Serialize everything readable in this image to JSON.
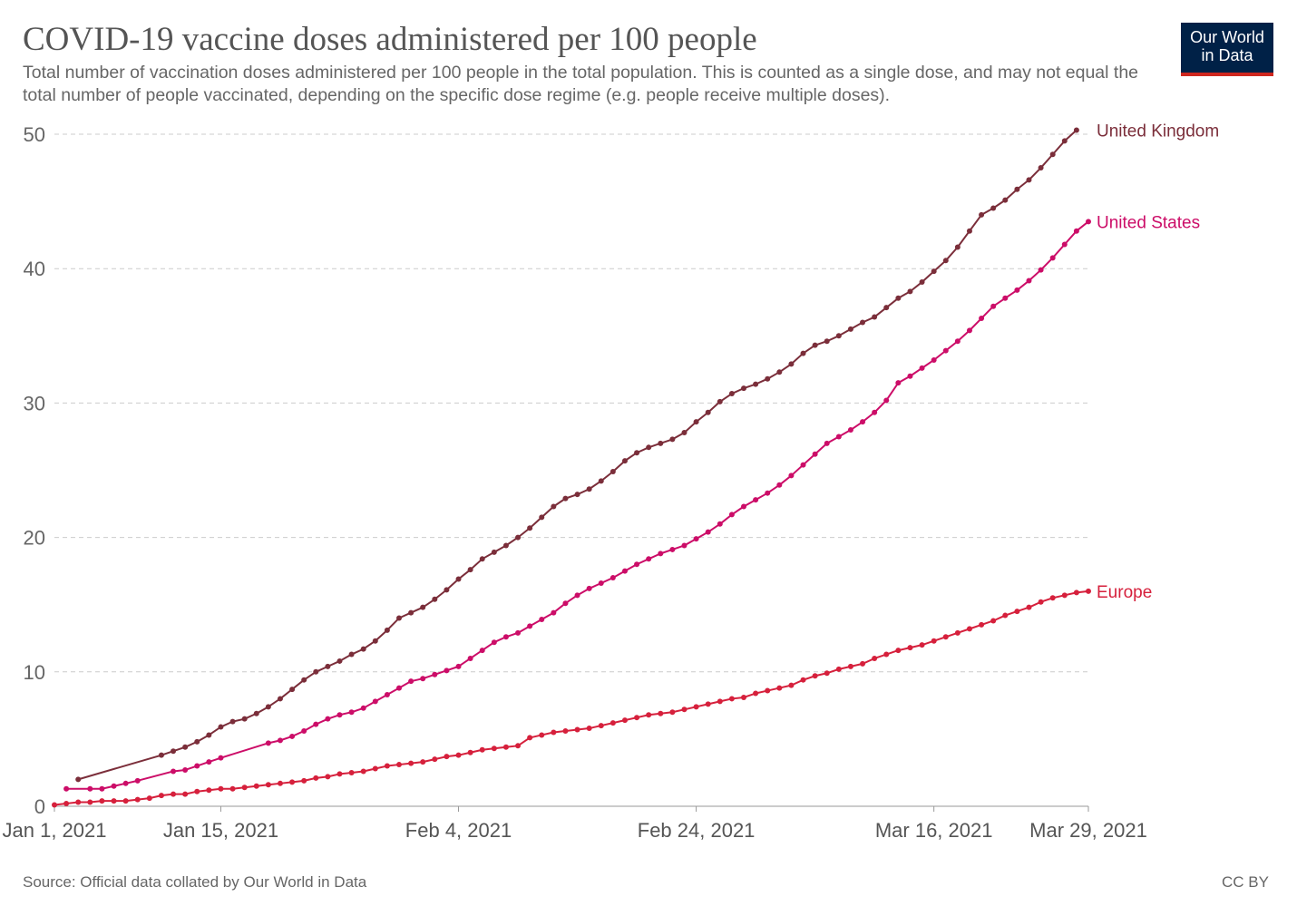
{
  "header": {
    "title": "COVID-19 vaccine doses administered per 100 people",
    "subtitle": "Total number of vaccination doses administered per 100 people in the total population. This is counted as a single dose, and may not equal the total number of people vaccinated, depending on the specific dose regime (e.g. people receive multiple doses).",
    "logo_line1": "Our World",
    "logo_line2": "in Data"
  },
  "footer": {
    "source": "Source: Official data collated by Our World in Data",
    "license": "CC BY"
  },
  "colors": {
    "uk": "#7b2e3a",
    "us": "#cc0d68",
    "europe": "#d6203c",
    "logo_bg": "#002147",
    "logo_accent": "#ce261e",
    "grid": "#cccccc"
  },
  "chart_data": {
    "type": "line",
    "x_axis": {
      "type": "date",
      "start": "2021-01-01",
      "end": "2021-03-29",
      "tick_labels": [
        "Jan 1, 2021",
        "Jan 15, 2021",
        "Feb 4, 2021",
        "Feb 24, 2021",
        "Mar 16, 2021",
        "Mar 29, 2021"
      ],
      "tick_dates": [
        "2021-01-01",
        "2021-01-15",
        "2021-02-04",
        "2021-02-24",
        "2021-03-16",
        "2021-03-29"
      ]
    },
    "y_axis": {
      "ylim": [
        0,
        50
      ],
      "ticks": [
        0,
        10,
        20,
        30,
        40,
        50
      ],
      "grid": true
    },
    "series": [
      {
        "name": "United Kingdom",
        "color": "#7b2e3a",
        "gap_after_date": "2021-01-03",
        "points": [
          [
            "2021-01-03",
            2.0
          ],
          [
            "2021-01-10",
            3.8
          ],
          [
            "2021-01-11",
            4.1
          ],
          [
            "2021-01-12",
            4.4
          ],
          [
            "2021-01-13",
            4.8
          ],
          [
            "2021-01-14",
            5.3
          ],
          [
            "2021-01-15",
            5.9
          ],
          [
            "2021-01-16",
            6.3
          ],
          [
            "2021-01-17",
            6.5
          ],
          [
            "2021-01-18",
            6.9
          ],
          [
            "2021-01-19",
            7.4
          ],
          [
            "2021-01-20",
            8.0
          ],
          [
            "2021-01-21",
            8.7
          ],
          [
            "2021-01-22",
            9.4
          ],
          [
            "2021-01-23",
            10.0
          ],
          [
            "2021-01-24",
            10.4
          ],
          [
            "2021-01-25",
            10.8
          ],
          [
            "2021-01-26",
            11.3
          ],
          [
            "2021-01-27",
            11.7
          ],
          [
            "2021-01-28",
            12.3
          ],
          [
            "2021-01-29",
            13.1
          ],
          [
            "2021-01-30",
            14.0
          ],
          [
            "2021-01-31",
            14.4
          ],
          [
            "2021-02-01",
            14.8
          ],
          [
            "2021-02-02",
            15.4
          ],
          [
            "2021-02-03",
            16.1
          ],
          [
            "2021-02-04",
            16.9
          ],
          [
            "2021-02-05",
            17.6
          ],
          [
            "2021-02-06",
            18.4
          ],
          [
            "2021-02-07",
            18.9
          ],
          [
            "2021-02-08",
            19.4
          ],
          [
            "2021-02-09",
            20.0
          ],
          [
            "2021-02-10",
            20.7
          ],
          [
            "2021-02-11",
            21.5
          ],
          [
            "2021-02-12",
            22.3
          ],
          [
            "2021-02-13",
            22.9
          ],
          [
            "2021-02-14",
            23.2
          ],
          [
            "2021-02-15",
            23.6
          ],
          [
            "2021-02-16",
            24.2
          ],
          [
            "2021-02-17",
            24.9
          ],
          [
            "2021-02-18",
            25.7
          ],
          [
            "2021-02-19",
            26.3
          ],
          [
            "2021-02-20",
            26.7
          ],
          [
            "2021-02-21",
            27.0
          ],
          [
            "2021-02-22",
            27.3
          ],
          [
            "2021-02-23",
            27.8
          ],
          [
            "2021-02-24",
            28.6
          ],
          [
            "2021-02-25",
            29.3
          ],
          [
            "2021-02-26",
            30.1
          ],
          [
            "2021-02-27",
            30.7
          ],
          [
            "2021-02-28",
            31.1
          ],
          [
            "2021-03-01",
            31.4
          ],
          [
            "2021-03-02",
            31.8
          ],
          [
            "2021-03-03",
            32.3
          ],
          [
            "2021-03-04",
            32.9
          ],
          [
            "2021-03-05",
            33.7
          ],
          [
            "2021-03-06",
            34.3
          ],
          [
            "2021-03-07",
            34.6
          ],
          [
            "2021-03-08",
            35.0
          ],
          [
            "2021-03-09",
            35.5
          ],
          [
            "2021-03-10",
            36.0
          ],
          [
            "2021-03-11",
            36.4
          ],
          [
            "2021-03-12",
            37.1
          ],
          [
            "2021-03-13",
            37.8
          ],
          [
            "2021-03-14",
            38.3
          ],
          [
            "2021-03-15",
            39.0
          ],
          [
            "2021-03-16",
            39.8
          ],
          [
            "2021-03-17",
            40.6
          ],
          [
            "2021-03-18",
            41.6
          ],
          [
            "2021-03-19",
            42.8
          ],
          [
            "2021-03-20",
            44.0
          ],
          [
            "2021-03-21",
            44.5
          ],
          [
            "2021-03-22",
            45.1
          ],
          [
            "2021-03-23",
            45.9
          ],
          [
            "2021-03-24",
            46.6
          ],
          [
            "2021-03-25",
            47.5
          ],
          [
            "2021-03-26",
            48.5
          ],
          [
            "2021-03-27",
            49.5
          ],
          [
            "2021-03-28",
            50.3
          ]
        ]
      },
      {
        "name": "United States",
        "color": "#cc0d68",
        "gap_after_date": "2021-01-15",
        "points": [
          [
            "2021-01-02",
            1.3
          ],
          [
            "2021-01-04",
            1.3
          ],
          [
            "2021-01-05",
            1.3
          ],
          [
            "2021-01-06",
            1.5
          ],
          [
            "2021-01-07",
            1.7
          ],
          [
            "2021-01-08",
            1.9
          ],
          [
            "2021-01-11",
            2.6
          ],
          [
            "2021-01-12",
            2.7
          ],
          [
            "2021-01-13",
            3.0
          ],
          [
            "2021-01-14",
            3.3
          ],
          [
            "2021-01-15",
            3.6
          ],
          [
            "2021-01-19",
            4.7
          ],
          [
            "2021-01-20",
            4.9
          ],
          [
            "2021-01-21",
            5.2
          ],
          [
            "2021-01-22",
            5.6
          ],
          [
            "2021-01-23",
            6.1
          ],
          [
            "2021-01-24",
            6.5
          ],
          [
            "2021-01-25",
            6.8
          ],
          [
            "2021-01-26",
            7.0
          ],
          [
            "2021-01-27",
            7.3
          ],
          [
            "2021-01-28",
            7.8
          ],
          [
            "2021-01-29",
            8.3
          ],
          [
            "2021-01-30",
            8.8
          ],
          [
            "2021-01-31",
            9.3
          ],
          [
            "2021-02-01",
            9.5
          ],
          [
            "2021-02-02",
            9.8
          ],
          [
            "2021-02-03",
            10.1
          ],
          [
            "2021-02-04",
            10.4
          ],
          [
            "2021-02-05",
            11.0
          ],
          [
            "2021-02-06",
            11.6
          ],
          [
            "2021-02-07",
            12.2
          ],
          [
            "2021-02-08",
            12.6
          ],
          [
            "2021-02-09",
            12.9
          ],
          [
            "2021-02-10",
            13.4
          ],
          [
            "2021-02-11",
            13.9
          ],
          [
            "2021-02-12",
            14.4
          ],
          [
            "2021-02-13",
            15.1
          ],
          [
            "2021-02-14",
            15.7
          ],
          [
            "2021-02-15",
            16.2
          ],
          [
            "2021-02-16",
            16.6
          ],
          [
            "2021-02-17",
            17.0
          ],
          [
            "2021-02-18",
            17.5
          ],
          [
            "2021-02-19",
            18.0
          ],
          [
            "2021-02-20",
            18.4
          ],
          [
            "2021-02-21",
            18.8
          ],
          [
            "2021-02-22",
            19.1
          ],
          [
            "2021-02-23",
            19.4
          ],
          [
            "2021-02-24",
            19.9
          ],
          [
            "2021-02-25",
            20.4
          ],
          [
            "2021-02-26",
            21.0
          ],
          [
            "2021-02-27",
            21.7
          ],
          [
            "2021-02-28",
            22.3
          ],
          [
            "2021-03-01",
            22.8
          ],
          [
            "2021-03-02",
            23.3
          ],
          [
            "2021-03-03",
            23.9
          ],
          [
            "2021-03-04",
            24.6
          ],
          [
            "2021-03-05",
            25.4
          ],
          [
            "2021-03-06",
            26.2
          ],
          [
            "2021-03-07",
            27.0
          ],
          [
            "2021-03-08",
            27.5
          ],
          [
            "2021-03-09",
            28.0
          ],
          [
            "2021-03-10",
            28.6
          ],
          [
            "2021-03-11",
            29.3
          ],
          [
            "2021-03-12",
            30.2
          ],
          [
            "2021-03-13",
            31.5
          ],
          [
            "2021-03-14",
            32.0
          ],
          [
            "2021-03-15",
            32.6
          ],
          [
            "2021-03-16",
            33.2
          ],
          [
            "2021-03-17",
            33.9
          ],
          [
            "2021-03-18",
            34.6
          ],
          [
            "2021-03-19",
            35.4
          ],
          [
            "2021-03-20",
            36.3
          ],
          [
            "2021-03-21",
            37.2
          ],
          [
            "2021-03-22",
            37.8
          ],
          [
            "2021-03-23",
            38.4
          ],
          [
            "2021-03-24",
            39.1
          ],
          [
            "2021-03-25",
            39.9
          ],
          [
            "2021-03-26",
            40.8
          ],
          [
            "2021-03-27",
            41.8
          ],
          [
            "2021-03-28",
            42.8
          ],
          [
            "2021-03-29",
            43.5
          ]
        ]
      },
      {
        "name": "Europe",
        "color": "#d6203c",
        "points": [
          [
            "2021-01-01",
            0.1
          ],
          [
            "2021-01-02",
            0.2
          ],
          [
            "2021-01-03",
            0.3
          ],
          [
            "2021-01-04",
            0.3
          ],
          [
            "2021-01-05",
            0.4
          ],
          [
            "2021-01-06",
            0.4
          ],
          [
            "2021-01-07",
            0.4
          ],
          [
            "2021-01-08",
            0.5
          ],
          [
            "2021-01-09",
            0.6
          ],
          [
            "2021-01-10",
            0.8
          ],
          [
            "2021-01-11",
            0.9
          ],
          [
            "2021-01-12",
            0.9
          ],
          [
            "2021-01-13",
            1.1
          ],
          [
            "2021-01-14",
            1.2
          ],
          [
            "2021-01-15",
            1.3
          ],
          [
            "2021-01-16",
            1.3
          ],
          [
            "2021-01-17",
            1.4
          ],
          [
            "2021-01-18",
            1.5
          ],
          [
            "2021-01-19",
            1.6
          ],
          [
            "2021-01-20",
            1.7
          ],
          [
            "2021-01-21",
            1.8
          ],
          [
            "2021-01-22",
            1.9
          ],
          [
            "2021-01-23",
            2.1
          ],
          [
            "2021-01-24",
            2.2
          ],
          [
            "2021-01-25",
            2.4
          ],
          [
            "2021-01-26",
            2.5
          ],
          [
            "2021-01-27",
            2.6
          ],
          [
            "2021-01-28",
            2.8
          ],
          [
            "2021-01-29",
            3.0
          ],
          [
            "2021-01-30",
            3.1
          ],
          [
            "2021-01-31",
            3.2
          ],
          [
            "2021-02-01",
            3.3
          ],
          [
            "2021-02-02",
            3.5
          ],
          [
            "2021-02-03",
            3.7
          ],
          [
            "2021-02-04",
            3.8
          ],
          [
            "2021-02-05",
            4.0
          ],
          [
            "2021-02-06",
            4.2
          ],
          [
            "2021-02-07",
            4.3
          ],
          [
            "2021-02-08",
            4.4
          ],
          [
            "2021-02-09",
            4.5
          ],
          [
            "2021-02-10",
            5.1
          ],
          [
            "2021-02-11",
            5.3
          ],
          [
            "2021-02-12",
            5.5
          ],
          [
            "2021-02-13",
            5.6
          ],
          [
            "2021-02-14",
            5.7
          ],
          [
            "2021-02-15",
            5.8
          ],
          [
            "2021-02-16",
            6.0
          ],
          [
            "2021-02-17",
            6.2
          ],
          [
            "2021-02-18",
            6.4
          ],
          [
            "2021-02-19",
            6.6
          ],
          [
            "2021-02-20",
            6.8
          ],
          [
            "2021-02-21",
            6.9
          ],
          [
            "2021-02-22",
            7.0
          ],
          [
            "2021-02-23",
            7.2
          ],
          [
            "2021-02-24",
            7.4
          ],
          [
            "2021-02-25",
            7.6
          ],
          [
            "2021-02-26",
            7.8
          ],
          [
            "2021-02-27",
            8.0
          ],
          [
            "2021-02-28",
            8.1
          ],
          [
            "2021-03-01",
            8.4
          ],
          [
            "2021-03-02",
            8.6
          ],
          [
            "2021-03-03",
            8.8
          ],
          [
            "2021-03-04",
            9.0
          ],
          [
            "2021-03-05",
            9.4
          ],
          [
            "2021-03-06",
            9.7
          ],
          [
            "2021-03-07",
            9.9
          ],
          [
            "2021-03-08",
            10.2
          ],
          [
            "2021-03-09",
            10.4
          ],
          [
            "2021-03-10",
            10.6
          ],
          [
            "2021-03-11",
            11.0
          ],
          [
            "2021-03-12",
            11.3
          ],
          [
            "2021-03-13",
            11.6
          ],
          [
            "2021-03-14",
            11.8
          ],
          [
            "2021-03-15",
            12.0
          ],
          [
            "2021-03-16",
            12.3
          ],
          [
            "2021-03-17",
            12.6
          ],
          [
            "2021-03-18",
            12.9
          ],
          [
            "2021-03-19",
            13.2
          ],
          [
            "2021-03-20",
            13.5
          ],
          [
            "2021-03-21",
            13.8
          ],
          [
            "2021-03-22",
            14.2
          ],
          [
            "2021-03-23",
            14.5
          ],
          [
            "2021-03-24",
            14.8
          ],
          [
            "2021-03-25",
            15.2
          ],
          [
            "2021-03-26",
            15.5
          ],
          [
            "2021-03-27",
            15.7
          ],
          [
            "2021-03-28",
            15.9
          ],
          [
            "2021-03-29",
            16.0
          ]
        ]
      }
    ]
  }
}
